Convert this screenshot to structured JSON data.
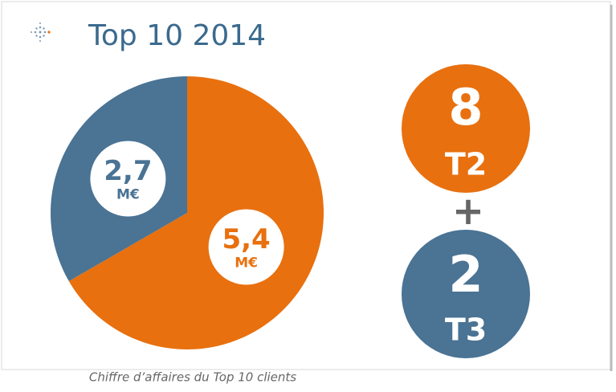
{
  "chart_data": {
    "type": "pie",
    "title": "Top 10 2014",
    "categories": [
      "T2",
      "T3"
    ],
    "values": [
      5.4,
      2.7
    ],
    "value_labels": [
      "5,4",
      "2,7"
    ],
    "unit": "M€",
    "colors": [
      "#e8700f",
      "#4a7394"
    ],
    "caption": "Chiffre d’affaires du Top 10 clients"
  },
  "counts": {
    "items": [
      {
        "value": "8",
        "label": "T2"
      },
      {
        "value": "2",
        "label": "T3"
      }
    ],
    "operator": "+"
  }
}
